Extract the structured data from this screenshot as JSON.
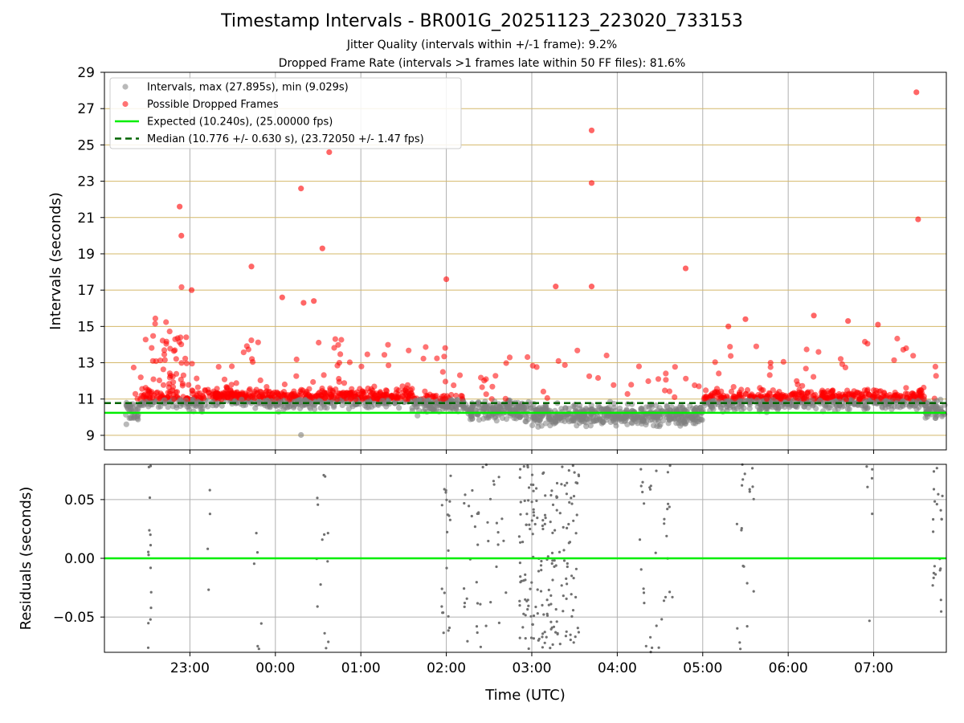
{
  "chart_data": {
    "title": "Timestamp Intervals - BR001G_20251123_223020_733153",
    "subtitle1": "Jitter Quality (intervals within +/-1 frame): 9.2%",
    "subtitle2": "Dropped Frame Rate (intervals >1 frames late within 50 FF files): 81.6%",
    "xlabel": "Time (UTC)",
    "x_range_hours": [
      -1.0,
      8.85
    ],
    "x_ticks": [
      {
        "h": 0,
        "label": "23:00"
      },
      {
        "h": 1,
        "label": "00:00"
      },
      {
        "h": 2,
        "label": "01:00"
      },
      {
        "h": 3,
        "label": "02:00"
      },
      {
        "h": 4,
        "label": "03:00"
      },
      {
        "h": 5,
        "label": "04:00"
      },
      {
        "h": 6,
        "label": "05:00"
      },
      {
        "h": 7,
        "label": "06:00"
      },
      {
        "h": 8,
        "label": "07:00"
      }
    ],
    "top": {
      "type": "scatter",
      "ylabel": "Intervals (seconds)",
      "ylim": [
        8.2,
        29
      ],
      "yticks": [
        9,
        11,
        13,
        15,
        17,
        19,
        21,
        23,
        25,
        27,
        29
      ],
      "expected": 10.24,
      "median": 10.776,
      "legend": [
        {
          "label": "Intervals, max (27.895s), min (9.029s)",
          "color": "#808080",
          "kind": "dot"
        },
        {
          "label": "Possible Dropped Frames",
          "color": "#ff0000",
          "kind": "dot"
        },
        {
          "label": "Expected (10.240s), (25.00000 fps)",
          "color": "#00ee00",
          "kind": "line"
        },
        {
          "label": "Median (10.776 +/- 0.630 s), (23.72050 +/- 1.47 fps)",
          "color": "#006400",
          "kind": "dash"
        }
      ],
      "notable_points": [
        {
          "h": 8.5,
          "v": 27.9
        },
        {
          "h": 4.7,
          "v": 25.8
        },
        {
          "h": 1.63,
          "v": 24.6
        },
        {
          "h": 4.7,
          "v": 22.9
        },
        {
          "h": 1.3,
          "v": 22.6
        },
        {
          "h": -0.12,
          "v": 21.6
        },
        {
          "h": 8.52,
          "v": 20.9
        },
        {
          "h": -0.1,
          "v": 20.0
        },
        {
          "h": 1.55,
          "v": 19.3
        },
        {
          "h": 0.72,
          "v": 18.3
        },
        {
          "h": 5.8,
          "v": 18.2
        },
        {
          "h": 3.0,
          "v": 17.6
        },
        {
          "h": 4.28,
          "v": 17.2
        },
        {
          "h": 4.7,
          "v": 17.2
        },
        {
          "h": 0.02,
          "v": 17.0
        },
        {
          "h": 1.08,
          "v": 16.6
        },
        {
          "h": 1.33,
          "v": 16.3
        },
        {
          "h": 1.45,
          "v": 16.4
        },
        {
          "h": 7.3,
          "v": 15.6
        },
        {
          "h": 7.7,
          "v": 15.3
        },
        {
          "h": 8.05,
          "v": 15.1
        },
        {
          "h": 6.5,
          "v": 15.4
        },
        {
          "h": 6.3,
          "v": 15.0
        },
        {
          "h": 1.3,
          "v": 9.02
        }
      ],
      "color_gray": "#808080",
      "color_red": "#ff0000",
      "grid_color": "#d4b86a"
    },
    "bottom": {
      "type": "scatter",
      "ylabel": "Residuals (seconds)",
      "ylim": [
        -0.08,
        0.08
      ],
      "yticks": [
        0.05,
        0.0,
        -0.05
      ],
      "ytick_labels": [
        "0.05",
        "0.00",
        "−0.05"
      ],
      "zero_color": "#00ee00",
      "point_color": "#707070"
    }
  }
}
